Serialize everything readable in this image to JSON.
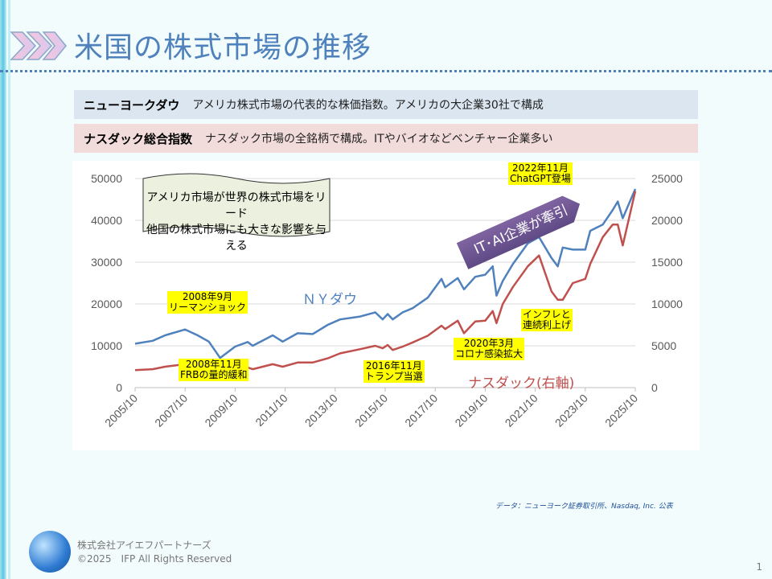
{
  "title": "米国の株式市場の推移",
  "definitions": [
    {
      "term": "ニューヨークダウ",
      "desc": "アメリカ株式市場の代表的な株価指数。アメリカの大企業30社で構成"
    },
    {
      "term": "ナスダック総合指数",
      "desc": "ナスダック市場の全銘柄で構成。ITやバイオなどベンチャー企業多い"
    }
  ],
  "callout": {
    "line1": "アメリカ市場が世界の株式市場をリード",
    "line2": "他国の株式市場にも大きな影響を与える"
  },
  "arrow_label": "IT･AI企業が牽引",
  "annotations": [
    {
      "l1": "2008年9月",
      "l2": "リーマンショック"
    },
    {
      "l1": "2008年11月",
      "l2": "FRBの量的緩和"
    },
    {
      "l1": "2016年11月",
      "l2": "トランプ当選"
    },
    {
      "l1": "2020年3月",
      "l2": "コロナ感染拡大"
    },
    {
      "l1": "インフレと",
      "l2": "連続利上げ"
    },
    {
      "l1": "2022年11月",
      "l2": "ChatGPT登場"
    }
  ],
  "chart_data": {
    "type": "line",
    "x_ticks": [
      "2005/10",
      "2007/10",
      "2009/10",
      "2011/10",
      "2013/10",
      "2015/10",
      "2017/10",
      "2019/10",
      "2021/10",
      "2023/10",
      "2025/10"
    ],
    "y_left": {
      "ticks": [
        0,
        10000,
        20000,
        30000,
        40000,
        50000
      ],
      "lim": [
        0,
        50000
      ]
    },
    "y_right": {
      "ticks": [
        0,
        5000,
        10000,
        15000,
        20000,
        25000
      ],
      "lim": [
        0,
        25000
      ]
    },
    "grid": true,
    "series": [
      {
        "name": "ＮＹダウ",
        "axis": "left",
        "color": "#4f81bd",
        "x": [
          2005.8,
          2006.5,
          2007.0,
          2007.8,
          2008.3,
          2008.75,
          2009.2,
          2009.8,
          2010.3,
          2010.5,
          2011.3,
          2011.7,
          2012.3,
          2012.9,
          2013.5,
          2014.0,
          2014.8,
          2015.4,
          2015.7,
          2015.9,
          2016.1,
          2016.5,
          2016.9,
          2017.5,
          2018.05,
          2018.2,
          2018.7,
          2018.95,
          2019.4,
          2019.8,
          2020.1,
          2020.25,
          2020.5,
          2020.9,
          2021.5,
          2021.95,
          2022.45,
          2022.7,
          2022.9,
          2023.3,
          2023.8,
          2024.0,
          2024.5,
          2024.9,
          2025.1,
          2025.3,
          2025.8
        ],
        "y": [
          10500,
          11200,
          12500,
          13900,
          12500,
          11000,
          7100,
          9800,
          10900,
          10000,
          12500,
          11000,
          13000,
          12800,
          15000,
          16300,
          17000,
          18000,
          16300,
          17600,
          16300,
          18000,
          19000,
          21500,
          26000,
          24000,
          26200,
          23500,
          26500,
          27000,
          29000,
          22000,
          25500,
          29500,
          34500,
          36000,
          31000,
          29000,
          33500,
          33000,
          33000,
          37500,
          39000,
          42500,
          44500,
          40500,
          47500
        ]
      },
      {
        "name": "ナスダック(右軸)",
        "axis": "right",
        "color": "#c0504d",
        "x": [
          2005.8,
          2006.5,
          2007.0,
          2007.8,
          2008.3,
          2008.75,
          2009.2,
          2009.8,
          2010.3,
          2010.5,
          2011.3,
          2011.7,
          2012.3,
          2012.9,
          2013.5,
          2014.0,
          2014.8,
          2015.4,
          2015.7,
          2015.9,
          2016.1,
          2016.5,
          2016.9,
          2017.5,
          2018.05,
          2018.2,
          2018.7,
          2018.95,
          2019.4,
          2019.8,
          2020.1,
          2020.25,
          2020.5,
          2020.9,
          2021.5,
          2021.95,
          2022.45,
          2022.7,
          2022.9,
          2023.3,
          2023.8,
          2024.0,
          2024.5,
          2024.9,
          2025.1,
          2025.3,
          2025.8
        ],
        "y": [
          2100,
          2200,
          2500,
          2800,
          2400,
          2200,
          1400,
          2100,
          2400,
          2200,
          2800,
          2500,
          3000,
          3000,
          3500,
          4100,
          4600,
          5000,
          4700,
          5100,
          4500,
          4900,
          5400,
          6200,
          7400,
          7000,
          8000,
          6500,
          7900,
          8000,
          9150,
          7700,
          10000,
          12000,
          14500,
          15800,
          11500,
          10500,
          10500,
          12500,
          13000,
          14800,
          18000,
          19500,
          19500,
          17000,
          23500
        ]
      }
    ]
  },
  "source": "データ：ニューヨーク証券取引所、Nasdaq, Inc. 公表",
  "footer": {
    "company": "株式会社アイエフパートナーズ",
    "copyright": "©2025　IFP All Rights Reserved",
    "page": "1"
  }
}
